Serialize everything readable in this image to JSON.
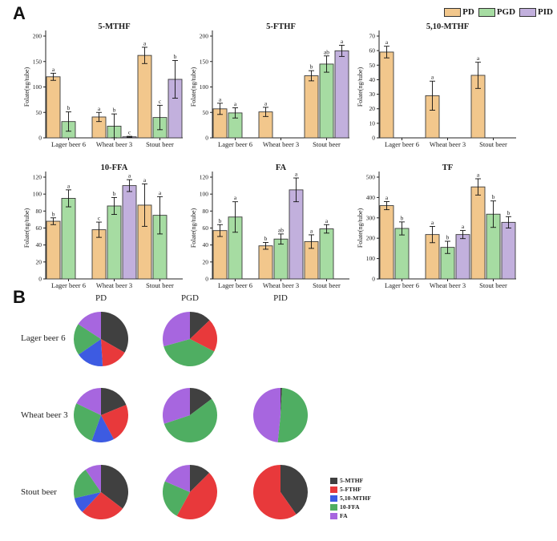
{
  "panel_a": {
    "label": "A",
    "legend": [
      {
        "label": "PD",
        "color": "#F2C78C"
      },
      {
        "label": "PGD",
        "color": "#A6DCA2"
      },
      {
        "label": "PID",
        "color": "#C2B0DD"
      }
    ],
    "ylabel": "Folate(ng/tube)",
    "categories": [
      "Lager beer 6",
      "Wheat beer 3",
      "Stout beer"
    ],
    "bar_edge_color": "#3a3a3a",
    "chart_data": [
      {
        "type": "bar",
        "title": "5-MTHF",
        "ylabel": "Folate(ng/tube)",
        "ylim": [
          0,
          200
        ],
        "yticks": [
          0,
          50,
          100,
          150,
          200
        ],
        "categories": [
          "Lager beer 6",
          "Wheat beer 3",
          "Stout beer"
        ],
        "series": [
          {
            "name": "PD",
            "values": [
              120,
              41,
              162
            ],
            "errors": [
              7,
              9,
              16
            ],
            "letters": [
              "a",
              "a",
              "a"
            ]
          },
          {
            "name": "PGD",
            "values": [
              32,
              23,
              40
            ],
            "errors": [
              19,
              24,
              24
            ],
            "letters": [
              "b",
              "b",
              "c"
            ]
          },
          {
            "name": "PID",
            "values": [
              null,
              2,
              115
            ],
            "errors": [
              null,
              1,
              37
            ],
            "letters": [
              null,
              "c",
              "b"
            ]
          }
        ]
      },
      {
        "type": "bar",
        "title": "5-FTHF",
        "ylabel": "Folate(ng/tube)",
        "ylim": [
          0,
          200
        ],
        "yticks": [
          0,
          50,
          100,
          150,
          200
        ],
        "categories": [
          "Lager beer 6",
          "Wheat beer 3",
          "Stout beer"
        ],
        "series": [
          {
            "name": "PD",
            "values": [
              57,
              51,
              122
            ],
            "errors": [
              11,
              9,
              10
            ],
            "letters": [
              "a",
              "a",
              "b"
            ]
          },
          {
            "name": "PGD",
            "values": [
              49,
              null,
              145
            ],
            "errors": [
              10,
              null,
              16
            ],
            "letters": [
              "a",
              null,
              "ab"
            ]
          },
          {
            "name": "PID",
            "values": [
              null,
              null,
              171
            ],
            "errors": [
              null,
              null,
              11
            ],
            "letters": [
              null,
              null,
              "a"
            ]
          }
        ]
      },
      {
        "type": "bar",
        "title": "5,10-MTHF",
        "ylabel": "Folate(ng/tube)",
        "ylim": [
          0,
          70
        ],
        "yticks": [
          0,
          10,
          20,
          30,
          40,
          50,
          60,
          70
        ],
        "categories": [
          "Lager beer 6",
          "Wheat beer 3",
          "Stout beer"
        ],
        "series": [
          {
            "name": "PD",
            "values": [
              59,
              29,
              43
            ],
            "errors": [
              4,
              10,
              9
            ],
            "letters": [
              "a",
              "a",
              "a"
            ]
          },
          {
            "name": "PGD",
            "values": [
              null,
              null,
              null
            ],
            "errors": [
              null,
              null,
              null
            ],
            "letters": [
              null,
              null,
              null
            ]
          },
          {
            "name": "PID",
            "values": [
              null,
              null,
              null
            ],
            "errors": [
              null,
              null,
              null
            ],
            "letters": [
              null,
              null,
              null
            ]
          }
        ]
      },
      {
        "type": "bar",
        "title": "10-FFA",
        "ylabel": "Folate(ng/tube)",
        "ylim": [
          0,
          120
        ],
        "yticks": [
          0,
          20,
          40,
          60,
          80,
          100,
          120
        ],
        "categories": [
          "Lager beer 6",
          "Wheat beer 3",
          "Stout beer"
        ],
        "series": [
          {
            "name": "PD",
            "values": [
              68,
              58,
              87
            ],
            "errors": [
              4,
              9,
              25
            ],
            "letters": [
              "b",
              "c",
              "a"
            ]
          },
          {
            "name": "PGD",
            "values": [
              95,
              86,
              75
            ],
            "errors": [
              10,
              10,
              22
            ],
            "letters": [
              "a",
              "b",
              "a"
            ]
          },
          {
            "name": "PID",
            "values": [
              null,
              110,
              null
            ],
            "errors": [
              null,
              7,
              null
            ],
            "letters": [
              null,
              "a",
              null
            ]
          }
        ]
      },
      {
        "type": "bar",
        "title": "FA",
        "ylabel": "Folate(ng/tube)",
        "ylim": [
          0,
          120
        ],
        "yticks": [
          0,
          20,
          40,
          60,
          80,
          100,
          120
        ],
        "categories": [
          "Lager beer 6",
          "Wheat beer 3",
          "Stout beer"
        ],
        "series": [
          {
            "name": "PD",
            "values": [
              57,
              39,
              44
            ],
            "errors": [
              7,
              4,
              8
            ],
            "letters": [
              "b",
              "b",
              "a"
            ]
          },
          {
            "name": "PGD",
            "values": [
              73,
              47,
              59
            ],
            "errors": [
              18,
              6,
              5
            ],
            "letters": [
              "a",
              "ab",
              "a"
            ]
          },
          {
            "name": "PID",
            "values": [
              null,
              105,
              null
            ],
            "errors": [
              null,
              14,
              null
            ],
            "letters": [
              null,
              "a",
              null
            ]
          }
        ]
      },
      {
        "type": "bar",
        "title": "TF",
        "ylabel": "Folate(ng/tube)",
        "ylim": [
          0,
          500
        ],
        "yticks": [
          0,
          100,
          200,
          300,
          400,
          500
        ],
        "categories": [
          "Lager beer 6",
          "Wheat beer 3",
          "Stout beer"
        ],
        "series": [
          {
            "name": "PD",
            "values": [
              360,
              218,
              452
            ],
            "errors": [
              20,
              40,
              40
            ],
            "letters": [
              "a",
              "a",
              "a"
            ]
          },
          {
            "name": "PGD",
            "values": [
              248,
              155,
              318
            ],
            "errors": [
              32,
              30,
              65
            ],
            "letters": [
              "b",
              "b",
              "b"
            ]
          },
          {
            "name": "PID",
            "values": [
              null,
              218,
              278
            ],
            "errors": [
              null,
              20,
              28
            ],
            "letters": [
              null,
              "a",
              "b"
            ]
          }
        ]
      }
    ]
  },
  "panel_b": {
    "label": "B",
    "column_headers": [
      "PD",
      "PGD",
      "PID"
    ],
    "legend": [
      {
        "label": "5-MTHF",
        "color": "#404040"
      },
      {
        "label": "5-FTHF",
        "color": "#E8393B"
      },
      {
        "label": "5,10-MTHF",
        "color": "#3D5BE2"
      },
      {
        "label": "10-FFA",
        "color": "#4FAE62"
      },
      {
        "label": "FA",
        "color": "#A766DF"
      }
    ],
    "chart_data": [
      {
        "type": "pie",
        "row": "Lager beer 6",
        "column": "PD",
        "slices": [
          {
            "name": "5-MTHF",
            "value": 120
          },
          {
            "name": "5-FTHF",
            "value": 57
          },
          {
            "name": "5,10-MTHF",
            "value": 59
          },
          {
            "name": "10-FFA",
            "value": 68
          },
          {
            "name": "FA",
            "value": 57
          }
        ]
      },
      {
        "type": "pie",
        "row": "Lager beer 6",
        "column": "PGD",
        "slices": [
          {
            "name": "5-MTHF",
            "value": 32
          },
          {
            "name": "5-FTHF",
            "value": 49
          },
          {
            "name": "10-FFA",
            "value": 95
          },
          {
            "name": "FA",
            "value": 73
          }
        ]
      },
      {
        "type": "pie",
        "row": "Wheat beer 3",
        "column": "PD",
        "slices": [
          {
            "name": "5-MTHF",
            "value": 41
          },
          {
            "name": "5-FTHF",
            "value": 51
          },
          {
            "name": "5,10-MTHF",
            "value": 29
          },
          {
            "name": "10-FFA",
            "value": 58
          },
          {
            "name": "FA",
            "value": 39
          }
        ]
      },
      {
        "type": "pie",
        "row": "Wheat beer 3",
        "column": "PGD",
        "slices": [
          {
            "name": "5-MTHF",
            "value": 23
          },
          {
            "name": "10-FFA",
            "value": 86
          },
          {
            "name": "FA",
            "value": 47
          }
        ]
      },
      {
        "type": "pie",
        "row": "Wheat beer 3",
        "column": "PID",
        "slices": [
          {
            "name": "5-MTHF",
            "value": 2
          },
          {
            "name": "10-FFA",
            "value": 110
          },
          {
            "name": "FA",
            "value": 105
          }
        ]
      },
      {
        "type": "pie",
        "row": "Stout beer",
        "column": "PD",
        "slices": [
          {
            "name": "5-MTHF",
            "value": 162
          },
          {
            "name": "5-FTHF",
            "value": 122
          },
          {
            "name": "5,10-MTHF",
            "value": 43
          },
          {
            "name": "10-FFA",
            "value": 87
          },
          {
            "name": "FA",
            "value": 44
          }
        ]
      },
      {
        "type": "pie",
        "row": "Stout beer",
        "column": "PGD",
        "slices": [
          {
            "name": "5-MTHF",
            "value": 40
          },
          {
            "name": "5-FTHF",
            "value": 145
          },
          {
            "name": "10-FFA",
            "value": 75
          },
          {
            "name": "FA",
            "value": 59
          }
        ]
      },
      {
        "type": "pie",
        "row": "Stout beer",
        "column": "PID",
        "slices": [
          {
            "name": "5-MTHF",
            "value": 115
          },
          {
            "name": "5-FTHF",
            "value": 171
          }
        ]
      }
    ],
    "rows": [
      "Lager beer 6",
      "Wheat beer 3",
      "Stout beer"
    ]
  }
}
